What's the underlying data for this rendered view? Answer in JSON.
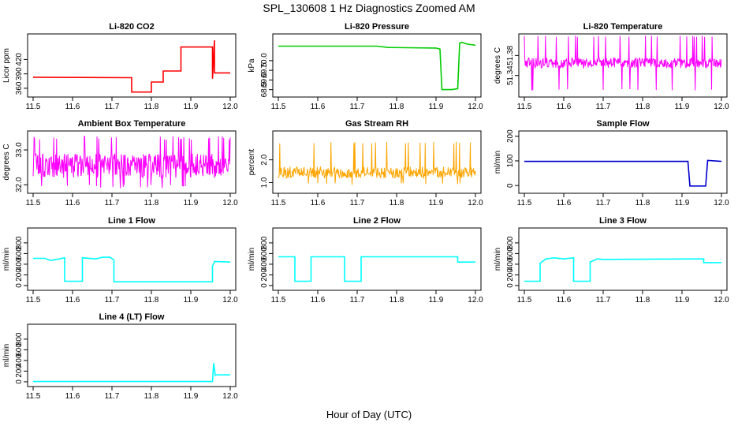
{
  "figure": {
    "title": "SPL_130608  1 Hz Diagnostics Zoomed AM",
    "xlabel": "Hour of Day (UTC)"
  },
  "chart_data": [
    {
      "type": "line",
      "title": "Li-820 CO2",
      "ylabel": "Licor ppm",
      "color": "#ff0000",
      "xlim": [
        11.49,
        12.01
      ],
      "ylim": [
        345,
        470
      ],
      "grid": false,
      "xticks": [
        "11.5",
        "11.6",
        "11.7",
        "11.8",
        "11.9",
        "12.0"
      ],
      "yticks": [
        {
          "v": 360,
          "label": "360"
        },
        {
          "v": 390,
          "label": "390"
        },
        {
          "v": 420,
          "label": "420"
        }
      ],
      "series": [
        {
          "x": [
            11.5,
            11.75,
            11.75,
            11.8,
            11.8,
            11.83,
            11.83,
            11.875,
            11.875,
            11.955,
            11.955,
            11.96,
            11.96,
            12.0
          ],
          "y": [
            383,
            382,
            352,
            352,
            373,
            373,
            396,
            396,
            446,
            446,
            380,
            460,
            392,
            392
          ]
        }
      ]
    },
    {
      "type": "line",
      "title": "Li-820 Pressure",
      "ylabel": "kPa",
      "color": "#00cc00",
      "xlim": [
        11.49,
        12.01
      ],
      "ylim": [
        68.2,
        71.3
      ],
      "grid": false,
      "xticks": [
        "11.5",
        "11.6",
        "11.7",
        "11.8",
        "11.9",
        "12.0"
      ],
      "yticks": [
        {
          "v": 68.5,
          "label": "68.5"
        },
        {
          "v": 69.0,
          "label": "69.0"
        },
        {
          "v": 69.5,
          "label": "69.5"
        },
        {
          "v": 70.0,
          "label": "70.0"
        }
      ],
      "series": [
        {
          "x": [
            11.5,
            11.75,
            11.78,
            11.9,
            11.91,
            11.915,
            11.94,
            11.955,
            11.96,
            11.965,
            11.98,
            12.0
          ],
          "y": [
            70.75,
            70.75,
            70.68,
            70.65,
            70.6,
            68.5,
            68.5,
            68.55,
            70.9,
            70.95,
            70.85,
            70.8
          ]
        }
      ]
    },
    {
      "type": "line",
      "title": "Li-820 Temperature",
      "ylabel": "degrees C",
      "color": "#ff00ff",
      "xlim": [
        11.49,
        12.01
      ],
      "ylim": [
        51.3,
        51.42
      ],
      "grid": false,
      "xticks": [
        "11.5",
        "11.6",
        "11.7",
        "11.8",
        "11.9",
        "12.0"
      ],
      "yticks": [
        {
          "v": 51.34,
          "label": "51.34"
        },
        {
          "v": 51.38,
          "label": "51.38"
        }
      ],
      "noise": {
        "x": [
          11.5,
          12.0
        ],
        "center": 51.365,
        "amplitude": 0.01,
        "spikes_up": 51.42,
        "spikes_down": 51.31
      }
    },
    {
      "type": "line",
      "title": "Ambient Box Temperature",
      "ylabel": "degrees C",
      "color": "#ff00ff",
      "xlim": [
        11.49,
        12.01
      ],
      "ylim": [
        31.8,
        33.5
      ],
      "grid": false,
      "xticks": [
        "11.5",
        "11.6",
        "11.7",
        "11.8",
        "11.9",
        "12.0"
      ],
      "yticks": [
        {
          "v": 32.0,
          "label": "32.0"
        },
        {
          "v": 33.0,
          "label": "33.0"
        }
      ],
      "noise": {
        "x": [
          11.5,
          12.0
        ],
        "center": 32.55,
        "amplitude": 0.35,
        "spikes_up": 33.4,
        "spikes_down": 31.9
      }
    },
    {
      "type": "line",
      "title": "Gas Stream RH",
      "ylabel": "percent",
      "color": "#ffa500",
      "xlim": [
        11.49,
        12.01
      ],
      "ylim": [
        0.6,
        3.2
      ],
      "grid": false,
      "xticks": [
        "11.5",
        "11.6",
        "11.7",
        "11.8",
        "11.9",
        "12.0"
      ],
      "yticks": [
        {
          "v": 1.0,
          "label": "1.0"
        },
        {
          "v": 2.0,
          "label": "2.0"
        }
      ],
      "noise": {
        "x": [
          11.5,
          12.0
        ],
        "center": 1.45,
        "amplitude": 0.25,
        "spikes_up": 2.8,
        "spikes_down": 0.9
      }
    },
    {
      "type": "line",
      "title": "Sample Flow",
      "ylabel": "ml/min",
      "color": "#0000cc",
      "xlim": [
        11.49,
        12.01
      ],
      "ylim": [
        -25,
        215
      ],
      "grid": false,
      "xticks": [
        "11.5",
        "11.6",
        "11.7",
        "11.8",
        "11.9",
        "12.0"
      ],
      "yticks": [
        {
          "v": 0,
          "label": "0"
        },
        {
          "v": 100,
          "label": "100"
        },
        {
          "v": 200,
          "label": "200"
        }
      ],
      "series": [
        {
          "x": [
            11.5,
            11.915,
            11.92,
            11.96,
            11.965,
            12.0
          ],
          "y": [
            98,
            98,
            -2,
            -2,
            102,
            98
          ]
        }
      ]
    },
    {
      "type": "line",
      "title": "Line 1 Flow",
      "ylabel": "ml/min",
      "color": "#00ffff",
      "xlim": [
        11.49,
        12.01
      ],
      "ylim": [
        -60,
        1050
      ],
      "grid": false,
      "xticks": [
        "11.5",
        "11.6",
        "11.7",
        "11.8",
        "11.9",
        "12.0"
      ],
      "yticks": [
        {
          "v": 0,
          "label": "0"
        },
        {
          "v": 200,
          "label": "200"
        },
        {
          "v": 400,
          "label": "400"
        },
        {
          "v": 600,
          "label": "600"
        },
        {
          "v": 800,
          "label": "800"
        }
      ],
      "series": [
        {
          "x": [
            11.5,
            11.53,
            11.545,
            11.58,
            11.58,
            11.625,
            11.625,
            11.66,
            11.675,
            11.695,
            11.705,
            11.705,
            11.955,
            11.955,
            11.96,
            12.0
          ],
          "y": [
            510,
            510,
            470,
            520,
            80,
            80,
            520,
            500,
            530,
            530,
            480,
            70,
            70,
            360,
            450,
            440
          ]
        }
      ]
    },
    {
      "type": "line",
      "title": "Line 2 Flow",
      "ylabel": "ml/min",
      "color": "#00ffff",
      "xlim": [
        11.49,
        12.01
      ],
      "ylim": [
        -60,
        1050
      ],
      "grid": false,
      "xticks": [
        "11.5",
        "11.6",
        "11.7",
        "11.8",
        "11.9",
        "12.0"
      ],
      "yticks": [
        {
          "v": 0,
          "label": "0"
        },
        {
          "v": 200,
          "label": "200"
        },
        {
          "v": 400,
          "label": "400"
        },
        {
          "v": 600,
          "label": "600"
        },
        {
          "v": 800,
          "label": "800"
        }
      ],
      "series": [
        {
          "x": [
            11.5,
            11.542,
            11.542,
            11.583,
            11.583,
            11.668,
            11.668,
            11.71,
            11.71,
            11.955,
            11.955,
            12.0
          ],
          "y": [
            540,
            540,
            80,
            80,
            540,
            540,
            80,
            80,
            540,
            540,
            440,
            440
          ]
        }
      ]
    },
    {
      "type": "line",
      "title": "Line 3 Flow",
      "ylabel": "ml/min",
      "color": "#00ffff",
      "xlim": [
        11.49,
        12.01
      ],
      "ylim": [
        -60,
        1050
      ],
      "grid": false,
      "xticks": [
        "11.5",
        "11.6",
        "11.7",
        "11.8",
        "11.9",
        "12.0"
      ],
      "yticks": [
        {
          "v": 0,
          "label": "0"
        },
        {
          "v": 200,
          "label": "200"
        },
        {
          "v": 400,
          "label": "400"
        },
        {
          "v": 600,
          "label": "600"
        },
        {
          "v": 800,
          "label": "800"
        }
      ],
      "series": [
        {
          "x": [
            11.5,
            11.54,
            11.54,
            11.555,
            11.575,
            11.6,
            11.625,
            11.625,
            11.667,
            11.667,
            11.685,
            11.7,
            11.955,
            11.955,
            12.0
          ],
          "y": [
            80,
            80,
            420,
            500,
            520,
            500,
            520,
            80,
            80,
            440,
            500,
            490,
            500,
            430,
            430
          ]
        }
      ]
    },
    {
      "type": "line",
      "title": "Line 4 (LT) Flow",
      "ylabel": "ml/min",
      "color": "#00ffff",
      "xlim": [
        11.49,
        12.01
      ],
      "ylim": [
        -60,
        1050
      ],
      "grid": false,
      "xticks": [
        "11.5",
        "11.6",
        "11.7",
        "11.8",
        "11.9",
        "12.0"
      ],
      "yticks": [
        {
          "v": 0,
          "label": "0"
        },
        {
          "v": 200,
          "label": "200"
        },
        {
          "v": 400,
          "label": "400"
        },
        {
          "v": 600,
          "label": "600"
        },
        {
          "v": 800,
          "label": "800"
        }
      ],
      "series": [
        {
          "x": [
            11.5,
            11.955,
            11.958,
            11.962,
            11.965,
            12.0
          ],
          "y": [
            5,
            5,
            350,
            120,
            130,
            130
          ]
        }
      ]
    }
  ]
}
